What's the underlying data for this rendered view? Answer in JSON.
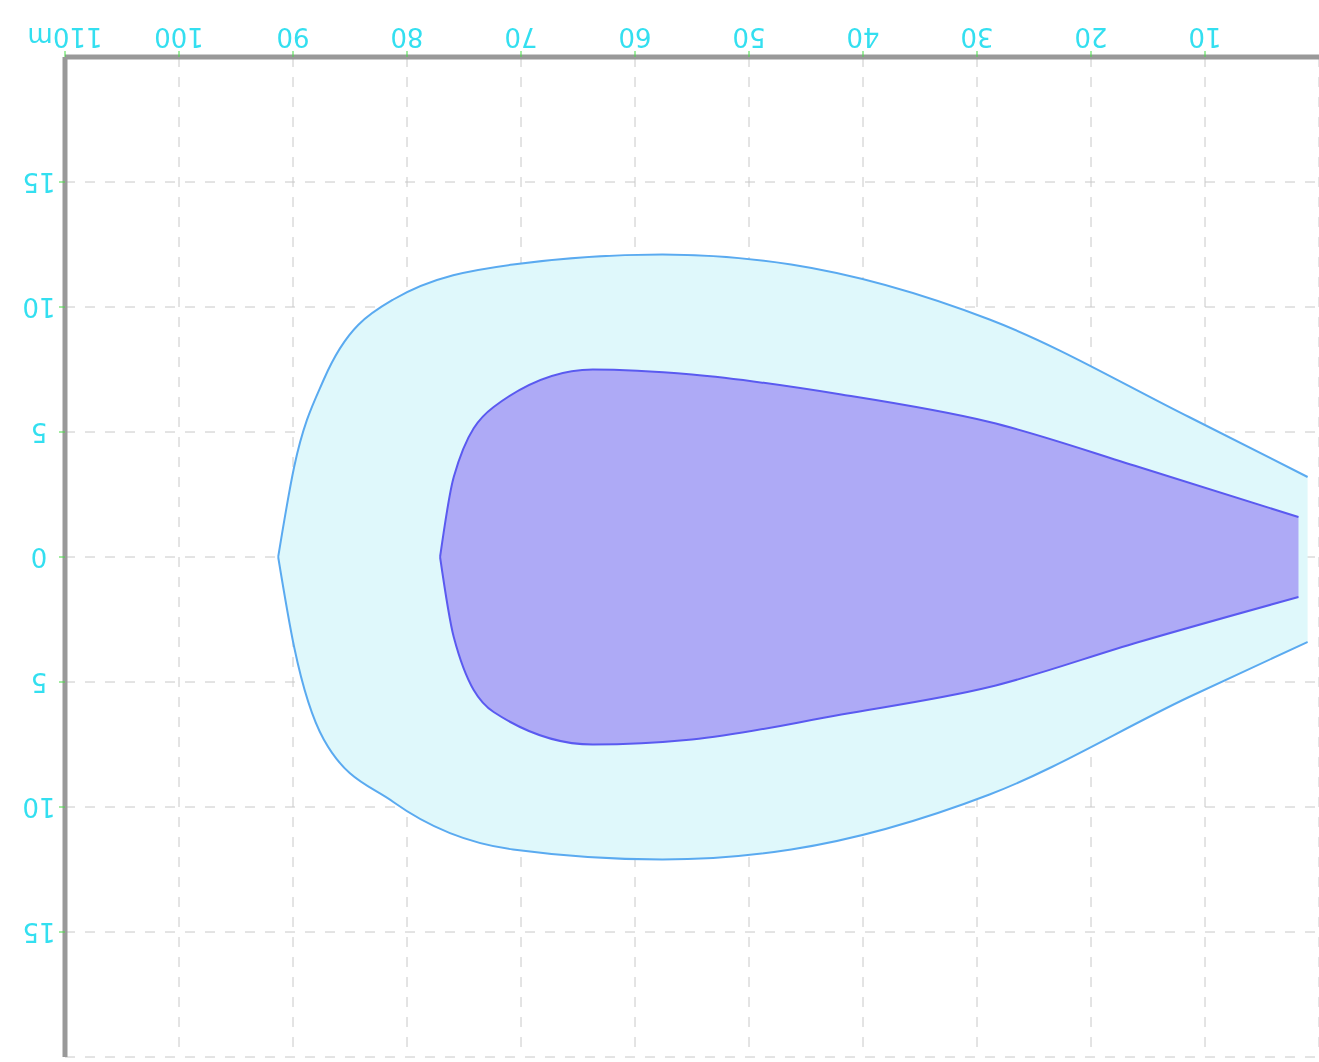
{
  "chart_data": {
    "type": "area",
    "xlim": [
      110,
      0
    ],
    "xticks": [
      10,
      20,
      30,
      40,
      50,
      60,
      70,
      80,
      90,
      100,
      {
        "value": 110,
        "label": "110m"
      }
    ],
    "ylim": [
      20,
      -20
    ],
    "yticks": [
      {
        "value": -15,
        "label": "15"
      },
      {
        "value": -10,
        "label": "10"
      },
      {
        "value": -5,
        "label": "5"
      },
      0,
      5,
      10,
      15
    ],
    "grid": true,
    "series": [
      {
        "color": "#5aaaf0",
        "x": [
          1,
          11.4,
          28.9,
          46.3,
          57.6,
          70.7,
          81.2,
          87.3,
          89.9,
          91.3
        ],
        "values": [
          3.4,
          5.6,
          9.5,
          11.7,
          12.1,
          11.7,
          9.8,
          7.3,
          3.6,
          0
        ]
      },
      {
        "color": "#5aaaf0",
        "x": [
          1,
          11.4,
          28.9,
          46.3,
          57.6,
          70.7,
          81.2,
          87.3,
          89.9,
          91.3
        ],
        "values": [
          -3.2,
          -5.6,
          -9.5,
          -11.7,
          -12.1,
          -11.7,
          -10.3,
          -7.1,
          -3.6,
          0
        ]
      },
      {
        "color": "#5a5af0",
        "x": [
          1.8,
          15.8,
          28.9,
          41.9,
          55,
          63.7,
          72.4,
          75.9,
          77.1
        ],
        "values": [
          1.6,
          3.4,
          5.2,
          6.3,
          7.3,
          7.5,
          6.2,
          3.2,
          0
        ]
      },
      {
        "color": "#5a5af0",
        "x": [
          1.8,
          15.8,
          28.9,
          41.9,
          55,
          63.7,
          72.4,
          75.9,
          77.1
        ],
        "values": [
          -1.6,
          -3.6,
          -5.4,
          -6.5,
          -7.3,
          -7.5,
          -6.0,
          -3.2,
          0
        ]
      }
    ]
  }
}
